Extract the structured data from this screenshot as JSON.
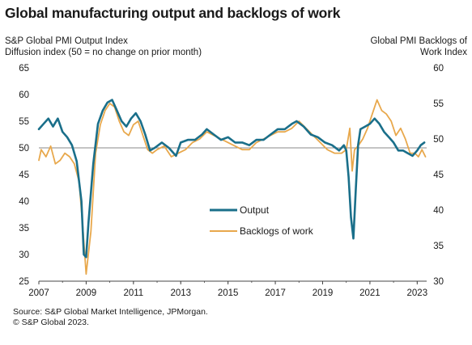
{
  "title": "Global manufacturing output and backlogs of work",
  "left_axis_label": [
    "S&P Global  PMI Output  Index",
    "Diffusion index  (50 = no change on prior month)"
  ],
  "right_axis_label": [
    "Global  PMI Backlogs of",
    "Work Index"
  ],
  "source_lines": [
    "Source: S&P Global Market Intelligence, JPMorgan.",
    "© S&P Global 2023."
  ],
  "colors": {
    "output": "#1a6f8a",
    "backlogs": "#e8a84c",
    "reference": "#888888",
    "axis": "#444444"
  },
  "chart_data": {
    "type": "line",
    "y_left": {
      "ticks": [
        25,
        30,
        35,
        40,
        45,
        50,
        55,
        60,
        65
      ],
      "range": [
        25,
        65
      ]
    },
    "y_right": {
      "ticks": [
        30,
        35,
        40,
        45,
        50,
        55,
        60
      ],
      "range": [
        30,
        60
      ]
    },
    "x_axis": {
      "ticks": [
        "2007",
        "2009",
        "2011",
        "2013",
        "2015",
        "2017",
        "2019",
        "2021",
        "2023"
      ],
      "range": [
        2007.0,
        2023.4
      ]
    },
    "reference_line": {
      "y_left": 50
    },
    "series": [
      {
        "name": "Output",
        "axis": "left",
        "x": [
          2007.0,
          2007.2,
          2007.4,
          2007.6,
          2007.8,
          2008.0,
          2008.2,
          2008.4,
          2008.6,
          2008.8,
          2008.9,
          2009.0,
          2009.1,
          2009.3,
          2009.5,
          2009.7,
          2009.9,
          2010.1,
          2010.3,
          2010.5,
          2010.7,
          2010.9,
          2011.1,
          2011.3,
          2011.5,
          2011.7,
          2011.9,
          2012.2,
          2012.5,
          2012.8,
          2013.0,
          2013.3,
          2013.6,
          2013.9,
          2014.1,
          2014.4,
          2014.7,
          2015.0,
          2015.3,
          2015.6,
          2015.9,
          2016.2,
          2016.5,
          2016.8,
          2017.1,
          2017.4,
          2017.7,
          2017.9,
          2018.2,
          2018.5,
          2018.8,
          2019.1,
          2019.4,
          2019.7,
          2019.9,
          2020.0,
          2020.1,
          2020.2,
          2020.3,
          2020.4,
          2020.5,
          2020.6,
          2020.8,
          2021.0,
          2021.2,
          2021.4,
          2021.6,
          2021.8,
          2022.0,
          2022.2,
          2022.4,
          2022.6,
          2022.8,
          2023.0,
          2023.15,
          2023.3
        ],
        "y": [
          53.5,
          54.5,
          55.5,
          54.0,
          55.5,
          53.0,
          52.0,
          50.5,
          47.5,
          40.0,
          30.0,
          29.5,
          36.0,
          47.0,
          54.5,
          57.0,
          58.5,
          59.0,
          57.0,
          55.0,
          54.0,
          55.5,
          56.5,
          55.0,
          52.5,
          49.5,
          50.0,
          51.0,
          50.0,
          48.5,
          51.0,
          51.5,
          51.5,
          52.5,
          53.5,
          52.5,
          51.5,
          52.0,
          51.0,
          51.0,
          50.5,
          51.5,
          51.5,
          52.5,
          53.5,
          53.5,
          54.5,
          55.0,
          54.0,
          52.5,
          52.0,
          51.0,
          50.5,
          49.5,
          50.5,
          49.5,
          44.5,
          37.0,
          33.0,
          42.0,
          50.5,
          53.5,
          54.0,
          54.5,
          55.5,
          54.5,
          53.0,
          52.0,
          51.0,
          49.5,
          49.5,
          49.0,
          48.5,
          49.5,
          50.5,
          51.0
        ]
      },
      {
        "name": "Backlogs of work",
        "axis": "right",
        "x": [
          2007.0,
          2007.1,
          2007.3,
          2007.5,
          2007.7,
          2007.9,
          2008.1,
          2008.3,
          2008.5,
          2008.7,
          2008.85,
          2009.0,
          2009.2,
          2009.4,
          2009.6,
          2009.8,
          2010.0,
          2010.2,
          2010.4,
          2010.6,
          2010.8,
          2011.0,
          2011.2,
          2011.4,
          2011.6,
          2011.8,
          2012.0,
          2012.3,
          2012.6,
          2012.9,
          2013.2,
          2013.5,
          2013.8,
          2014.1,
          2014.4,
          2014.7,
          2015.0,
          2015.3,
          2015.6,
          2015.9,
          2016.2,
          2016.5,
          2016.8,
          2017.1,
          2017.4,
          2017.7,
          2018.0,
          2018.3,
          2018.6,
          2018.9,
          2019.2,
          2019.5,
          2019.8,
          2020.0,
          2020.15,
          2020.25,
          2020.35,
          2020.5,
          2020.7,
          2020.9,
          2021.1,
          2021.3,
          2021.5,
          2021.7,
          2021.9,
          2022.1,
          2022.3,
          2022.5,
          2022.7,
          2022.9,
          2023.05,
          2023.2,
          2023.35
        ],
        "y": [
          47.0,
          48.5,
          47.5,
          49.0,
          46.5,
          47.0,
          48.0,
          47.5,
          46.5,
          44.0,
          38.0,
          31.0,
          37.0,
          48.0,
          52.0,
          54.0,
          55.0,
          54.5,
          52.5,
          51.0,
          50.5,
          52.0,
          52.5,
          50.5,
          48.5,
          48.0,
          48.5,
          49.0,
          47.5,
          48.0,
          48.5,
          49.5,
          50.0,
          51.0,
          50.5,
          50.0,
          49.5,
          49.0,
          48.5,
          48.5,
          49.5,
          50.0,
          50.5,
          51.0,
          51.0,
          51.5,
          52.5,
          51.5,
          50.5,
          49.5,
          48.5,
          48.0,
          48.0,
          48.5,
          51.5,
          45.5,
          48.5,
          49.0,
          50.0,
          51.5,
          53.5,
          55.5,
          54.0,
          53.5,
          52.5,
          50.5,
          51.5,
          50.0,
          48.0,
          48.0,
          47.5,
          48.5,
          47.5
        ]
      }
    ]
  }
}
